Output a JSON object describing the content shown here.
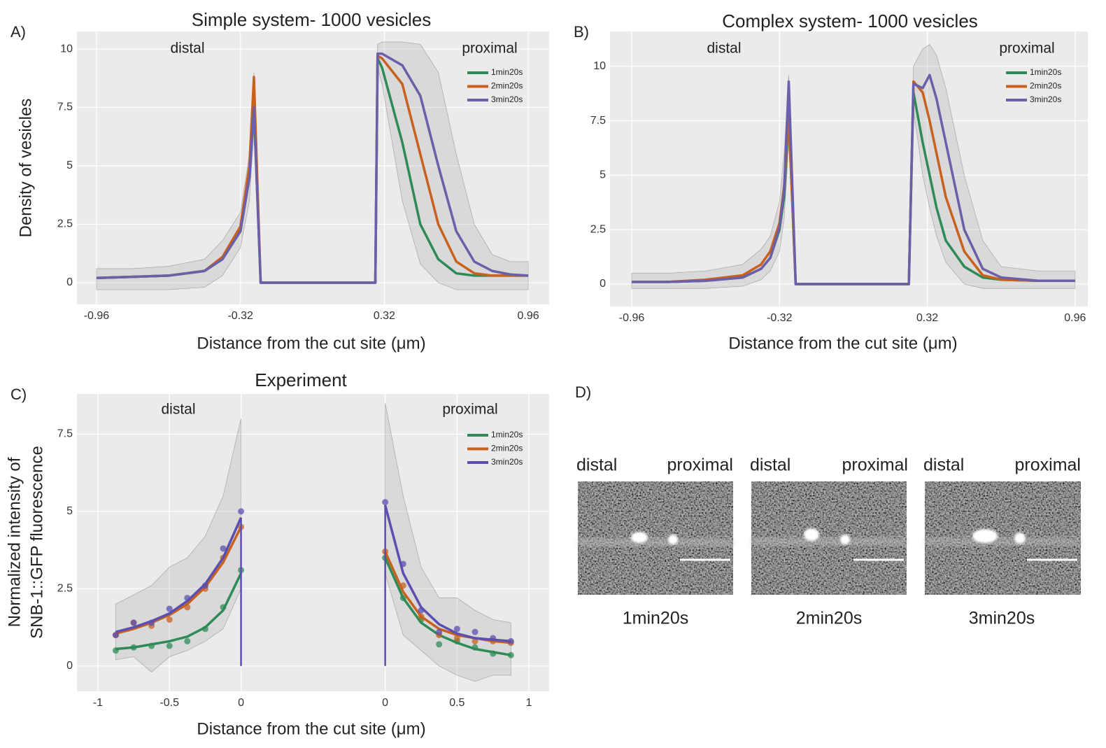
{
  "chart_data": [
    {
      "type": "line",
      "panel_label": "A)",
      "title": "Simple system- 1000 vesicles",
      "xlabel": "Distance from the cut site (μm)",
      "ylabel": "Density of vesicles",
      "annotations": [
        "distal",
        "proximal"
      ],
      "grid": true,
      "legend": "upper right",
      "xlim": [
        -1.047,
        1.053
      ],
      "xticks": [
        -0.96,
        -0.32,
        0.32,
        0.96
      ],
      "ylim": [
        -0.93,
        10.75
      ],
      "yticks": [
        0,
        2.5,
        5,
        7.5,
        10
      ],
      "x": [
        -0.96,
        -0.8,
        -0.64,
        -0.48,
        -0.4,
        -0.32,
        -0.28,
        -0.26,
        -0.23,
        0.28,
        0.29,
        0.31,
        0.4,
        0.48,
        0.56,
        0.64,
        0.72,
        0.8,
        0.88,
        0.96
      ],
      "band": {
        "lower": [
          -0.3,
          -0.3,
          -0.3,
          -0.2,
          0.3,
          1.5,
          3.5,
          6.5,
          0,
          0,
          9.2,
          8.5,
          3.5,
          0.8,
          0,
          -0.3,
          -0.3,
          -0.3,
          -0.3,
          -0.3
        ],
        "upper": [
          0.6,
          0.6,
          0.7,
          1,
          1.8,
          3,
          5.5,
          9,
          0,
          0,
          10.2,
          10.3,
          10.3,
          10.2,
          9,
          5.5,
          2.5,
          1.2,
          0.9,
          0.9
        ]
      },
      "series": [
        {
          "name": "1min20s",
          "color": "#2e8b57",
          "values": [
            0.2,
            0.25,
            0.3,
            0.5,
            1,
            2.2,
            4.5,
            7.5,
            0,
            0,
            9.6,
            9.2,
            6.0,
            2.5,
            1.0,
            0.4,
            0.3,
            0.3,
            0.3,
            0.3
          ]
        },
        {
          "name": "2min20s",
          "color": "#c8601e",
          "values": [
            0.2,
            0.25,
            0.3,
            0.5,
            1.1,
            2.4,
            5,
            8.8,
            0,
            0,
            9.7,
            9.6,
            8.5,
            5.5,
            2.5,
            0.9,
            0.4,
            0.3,
            0.3,
            0.3
          ]
        },
        {
          "name": "3min20s",
          "color": "#6a5fa8",
          "values": [
            0.2,
            0.25,
            0.3,
            0.5,
            1,
            2.2,
            4.5,
            7.5,
            0,
            0,
            9.8,
            9.8,
            9.3,
            8.0,
            5.0,
            2.2,
            0.9,
            0.5,
            0.35,
            0.3
          ]
        }
      ]
    },
    {
      "type": "line",
      "panel_label": "B)",
      "title": "Complex system- 1000 vesicles",
      "xlabel": "Distance from the cut site (μm)",
      "annotations": [
        "distal",
        "proximal"
      ],
      "grid": true,
      "legend": "upper right",
      "xlim": [
        -1.054,
        1.015
      ],
      "xticks": [
        -0.96,
        -0.32,
        0.32,
        0.96
      ],
      "ylim": [
        -1.03,
        11.6
      ],
      "yticks": [
        0,
        2.5,
        5,
        7.5,
        10
      ],
      "x": [
        -0.96,
        -0.8,
        -0.64,
        -0.48,
        -0.4,
        -0.36,
        -0.32,
        -0.3,
        -0.28,
        -0.25,
        0.24,
        0.26,
        0.3,
        0.33,
        0.36,
        0.4,
        0.48,
        0.56,
        0.64,
        0.8,
        0.96
      ],
      "band": {
        "lower": [
          -0.2,
          -0.2,
          -0.2,
          -0.1,
          0.2,
          0.6,
          1.5,
          3,
          6.5,
          0,
          0,
          8,
          5,
          3.5,
          2.2,
          1,
          0,
          -0.2,
          -0.2,
          -0.2,
          -0.2
        ],
        "upper": [
          0.5,
          0.5,
          0.6,
          0.9,
          1.6,
          2.2,
          3.8,
          6,
          9.6,
          0,
          0,
          10,
          10.8,
          11,
          10.5,
          9,
          5,
          2,
          0.8,
          0.6,
          0.6
        ]
      },
      "series": [
        {
          "name": "1min20s",
          "color": "#2e8b57",
          "values": [
            0.1,
            0.1,
            0.15,
            0.3,
            0.7,
            1.2,
            2.5,
            4,
            7.7,
            0,
            0,
            8.8,
            6.5,
            5,
            3.5,
            2,
            0.8,
            0.3,
            0.2,
            0.15,
            0.15
          ]
        },
        {
          "name": "2min20s",
          "color": "#c8601e",
          "values": [
            0.1,
            0.1,
            0.2,
            0.4,
            0.9,
            1.5,
            2.8,
            4.5,
            7.7,
            0,
            0,
            9.3,
            8.8,
            7.5,
            6,
            4,
            1.5,
            0.4,
            0.2,
            0.15,
            0.15
          ]
        },
        {
          "name": "3min20s",
          "color": "#6a5fa8",
          "values": [
            0.1,
            0.1,
            0.15,
            0.3,
            0.7,
            1.2,
            2.6,
            4.3,
            9.3,
            0,
            0,
            9.2,
            9.0,
            9.6,
            8.5,
            6.5,
            2.5,
            0.7,
            0.3,
            0.15,
            0.15
          ]
        }
      ]
    },
    {
      "type": "line",
      "panel_label": "C)",
      "title": "Experiment",
      "xlabel": "Distance from the cut site (μm)",
      "ylabel": [
        "Normalized intensity of",
        "SNB-1::GFP fluorescence"
      ],
      "grid": true,
      "legend": "upper right",
      "ylim": [
        -0.82,
        8.8
      ],
      "yticks": [
        0,
        2.5,
        5,
        7.5
      ],
      "series": [
        {
          "name": "1min20s",
          "color": "#2e8b57"
        },
        {
          "name": "2min20s",
          "color": "#c8601e"
        },
        {
          "name": "3min20s",
          "color": "#5a4fb0"
        }
      ],
      "segments": [
        {
          "annotation": "distal",
          "xlim": [
            -1.146,
            0.503
          ],
          "xticks": [
            -1,
            -0.5,
            0
          ],
          "x": [
            -0.875,
            -0.75,
            -0.625,
            -0.5,
            -0.375,
            -0.25,
            -0.125,
            0
          ],
          "band": {
            "lower": [
              0.2,
              0.3,
              -0.2,
              0.3,
              0.5,
              0.8,
              1.2,
              2.5
            ],
            "upper": [
              2.0,
              2.3,
              2.6,
              3.2,
              3.5,
              4.2,
              5.5,
              8.0
            ]
          },
          "values": [
            [
              0.5,
              0.6,
              0.65,
              0.65,
              0.8,
              1.2,
              1.9,
              3.1
            ],
            [
              1.0,
              1.4,
              1.3,
              1.5,
              1.9,
              2.5,
              3.5,
              4.5
            ],
            [
              1.0,
              1.4,
              1.4,
              1.85,
              2.2,
              2.6,
              3.8,
              5.0
            ]
          ],
          "fit": [
            [
              0.55,
              0.6,
              0.7,
              0.8,
              0.95,
              1.25,
              1.8,
              3.0
            ],
            [
              1.05,
              1.2,
              1.4,
              1.65,
              2.0,
              2.55,
              3.35,
              4.5
            ],
            [
              1.1,
              1.25,
              1.45,
              1.7,
              2.1,
              2.65,
              3.5,
              4.8
            ]
          ]
        },
        {
          "annotation": "proximal",
          "xlim": [
            -0.502,
            1.141
          ],
          "xticks": [
            0,
            0.5,
            1
          ],
          "x": [
            0,
            0.125,
            0.25,
            0.375,
            0.5,
            0.625,
            0.75,
            0.875
          ],
          "band": {
            "lower": [
              3.0,
              1.0,
              0.5,
              0.0,
              -0.3,
              -0.5,
              -0.3,
              -0.3
            ],
            "upper": [
              8.5,
              5.5,
              3.2,
              2.2,
              2.2,
              1.8,
              1.5,
              1.4
            ]
          },
          "values": [
            [
              3.5,
              2.2,
              1.5,
              0.7,
              0.8,
              0.6,
              0.4,
              0.35
            ],
            [
              3.7,
              2.6,
              1.6,
              1.0,
              0.9,
              0.8,
              0.8,
              0.75
            ],
            [
              5.3,
              3.3,
              1.8,
              1.1,
              1.2,
              1.1,
              0.9,
              0.8
            ]
          ],
          "fit": [
            [
              3.5,
              2.2,
              1.4,
              1.0,
              0.75,
              0.55,
              0.45,
              0.35
            ],
            [
              3.7,
              2.4,
              1.6,
              1.2,
              1.0,
              0.9,
              0.8,
              0.75
            ],
            [
              5.2,
              3.0,
              1.9,
              1.35,
              1.05,
              0.9,
              0.85,
              0.8
            ]
          ]
        }
      ]
    }
  ],
  "panel_d": {
    "label": "D)",
    "images": [
      {
        "distal": "distal",
        "proximal": "proximal",
        "caption": "1min20s"
      },
      {
        "distal": "distal",
        "proximal": "proximal",
        "caption": "2min20s"
      },
      {
        "distal": "distal",
        "proximal": "proximal",
        "caption": "3min20s"
      }
    ]
  }
}
